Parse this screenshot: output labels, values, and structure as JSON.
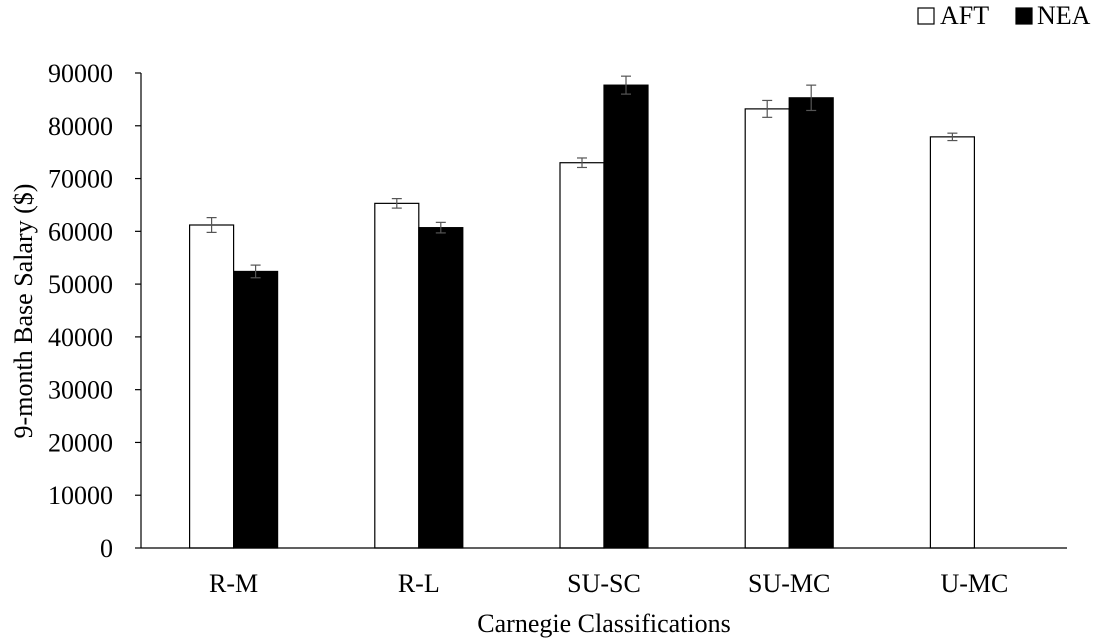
{
  "chart_data": {
    "type": "bar",
    "title": "",
    "xlabel": "Carnegie Classifications",
    "ylabel": "9-month Base Salary ($)",
    "categories": [
      "R-M",
      "R-L",
      "SU-SC",
      "SU-MC",
      "U-MC"
    ],
    "ylim": [
      0,
      90000
    ],
    "yticks": [
      "0",
      "10000",
      "20000",
      "30000",
      "40000",
      "50000",
      "60000",
      "70000",
      "80000",
      "90000"
    ],
    "grid": false,
    "legend_position": "top-right",
    "series": [
      {
        "name": "AFT",
        "fill": "#ffffff",
        "values": [
          61200,
          65300,
          73000,
          83200,
          77900
        ],
        "errors": [
          1400,
          900,
          900,
          1600,
          700
        ]
      },
      {
        "name": "NEA",
        "fill": "#000000",
        "values": [
          52400,
          60700,
          87700,
          85300,
          null
        ],
        "errors": [
          1200,
          1000,
          1700,
          2400,
          null
        ]
      }
    ]
  }
}
